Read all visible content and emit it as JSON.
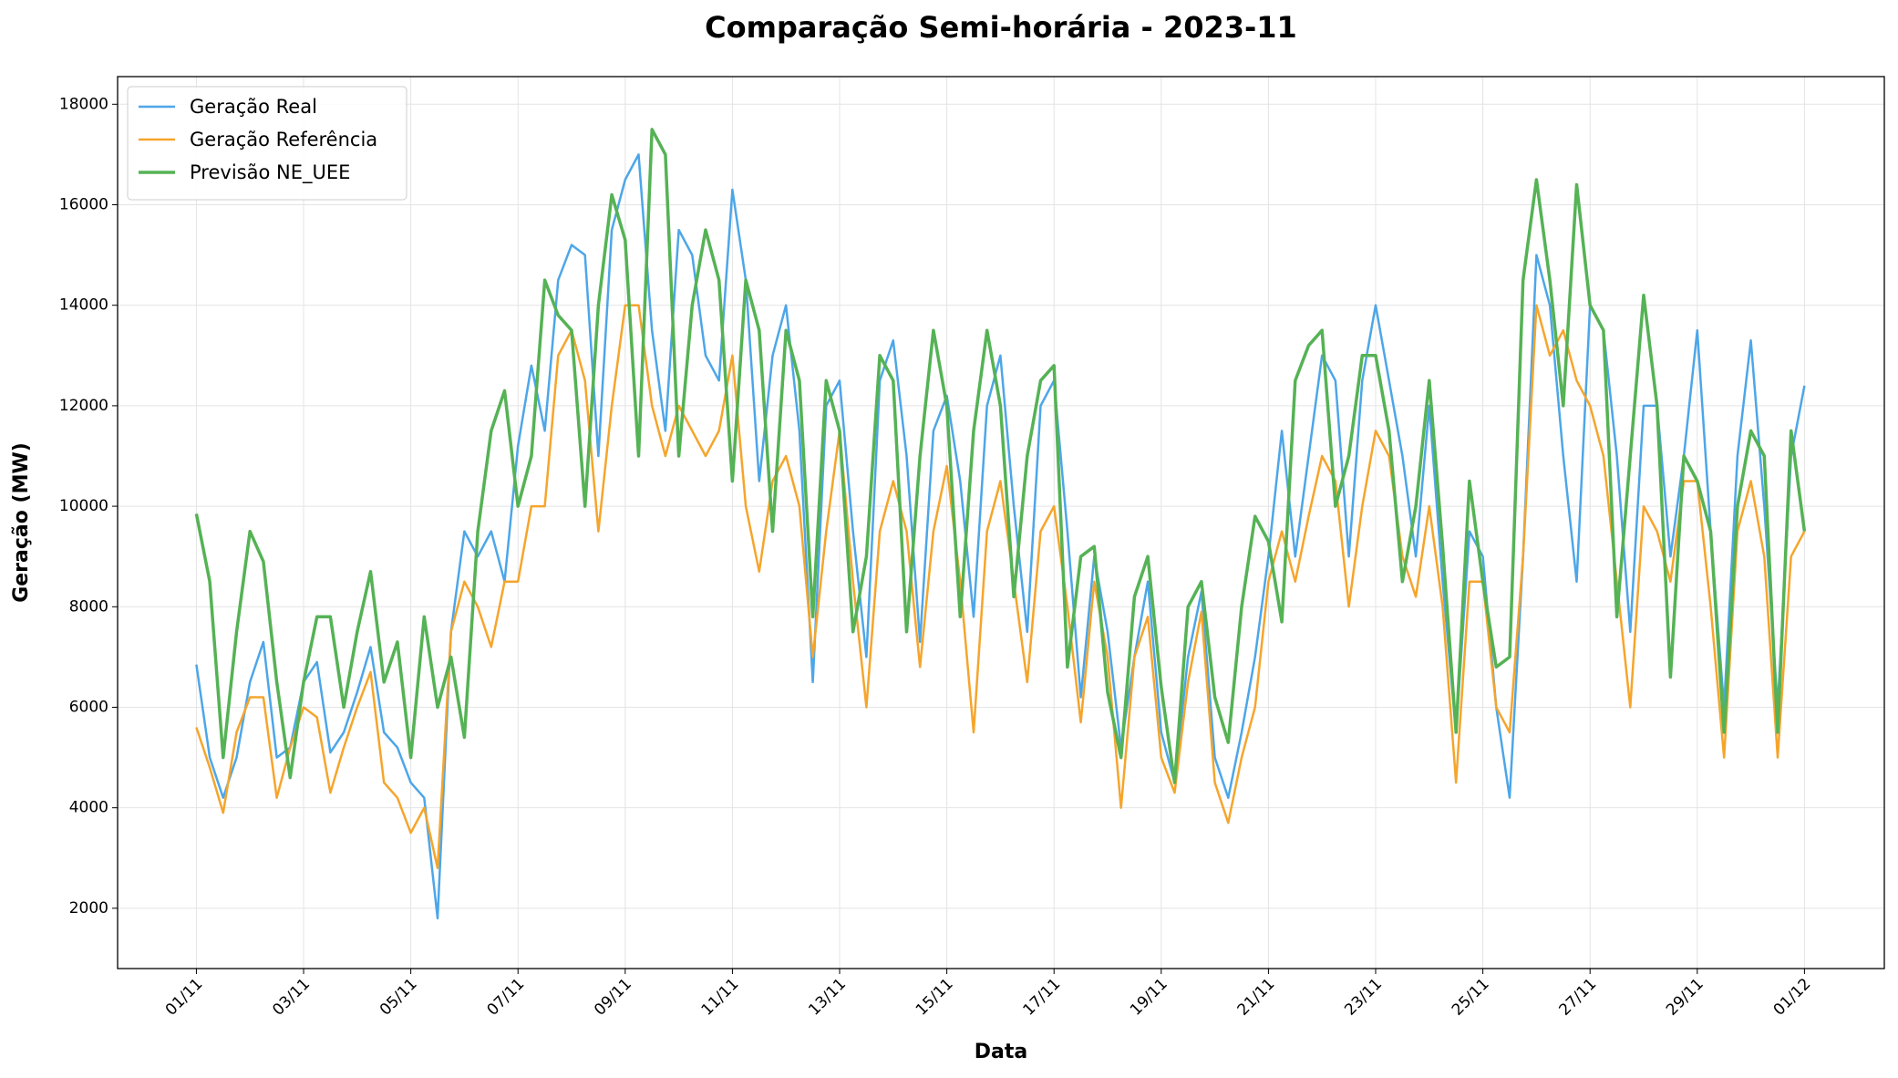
{
  "chart_data": {
    "type": "line",
    "title": "Comparação Semi-horária - 2023-11",
    "xlabel": "Data",
    "ylabel": "Geração (MW)",
    "x": [
      0,
      0.25,
      0.5,
      0.75,
      1,
      1.25,
      1.5,
      1.75,
      2,
      2.25,
      2.5,
      2.75,
      3,
      3.25,
      3.5,
      3.75,
      4,
      4.25,
      4.5,
      4.75,
      5,
      5.25,
      5.5,
      5.75,
      6,
      6.25,
      6.5,
      6.75,
      7,
      7.25,
      7.5,
      7.75,
      8,
      8.25,
      8.5,
      8.75,
      9,
      9.25,
      9.5,
      9.75,
      10,
      10.25,
      10.5,
      10.75,
      11,
      11.25,
      11.5,
      11.75,
      12,
      12.25,
      12.5,
      12.75,
      13,
      13.25,
      13.5,
      13.75,
      14,
      14.25,
      14.5,
      14.75,
      15,
      15.25,
      15.5,
      15.75,
      16,
      16.25,
      16.5,
      16.75,
      17,
      17.25,
      17.5,
      17.75,
      18,
      18.25,
      18.5,
      18.75,
      19,
      19.25,
      19.5,
      19.75,
      20,
      20.25,
      20.5,
      20.75,
      21,
      21.25,
      21.5,
      21.75,
      22,
      22.25,
      22.5,
      22.75,
      23,
      23.25,
      23.5,
      23.75,
      24,
      24.25,
      24.5,
      24.75,
      25,
      25.25,
      25.5,
      25.75,
      26,
      26.25,
      26.5,
      26.75,
      27,
      27.25,
      27.5,
      27.75,
      28,
      28.25,
      28.5,
      28.75,
      29,
      29.25,
      29.5,
      29.75,
      30
    ],
    "series": [
      {
        "name": "Geração Real",
        "color": "#4da6e8",
        "width": 2.5,
        "values": [
          6850,
          5000,
          4200,
          5000,
          6500,
          7300,
          5000,
          5200,
          6500,
          6900,
          5100,
          5500,
          6300,
          7200,
          5500,
          5200,
          4500,
          4200,
          1800,
          7500,
          9500,
          9000,
          9500,
          8500,
          11200,
          12800,
          11500,
          14500,
          15200,
          15000,
          11000,
          15500,
          16500,
          17000,
          13500,
          11500,
          15500,
          15000,
          13000,
          12500,
          16300,
          14500,
          10500,
          13000,
          14000,
          11500,
          6500,
          12000,
          12500,
          9500,
          7000,
          12500,
          13300,
          11000,
          7300,
          11500,
          12200,
          10500,
          7800,
          12000,
          13000,
          10000,
          7500,
          12000,
          12500,
          9500,
          6200,
          9000,
          7500,
          5200,
          7000,
          8500,
          5500,
          4500,
          7000,
          8300,
          5000,
          4200,
          5500,
          7000,
          9000,
          11500,
          9000,
          11000,
          13000,
          12500,
          9000,
          12500,
          14000,
          12500,
          11000,
          9000,
          12000,
          8500,
          5500,
          9500,
          9000,
          6000,
          4200,
          9000,
          15000,
          14000,
          11000,
          8500,
          14000,
          13500,
          11000,
          7500,
          12000,
          12000,
          9000,
          11000,
          13500,
          9500,
          6000,
          11000,
          13300,
          10000,
          6000,
          11000,
          12400
        ]
      },
      {
        "name": "Geração Referência",
        "color": "#f5a52c",
        "width": 2.5,
        "values": [
          5600,
          4800,
          3900,
          5500,
          6200,
          6200,
          4200,
          5200,
          6000,
          5800,
          4300,
          5200,
          6000,
          6700,
          4500,
          4200,
          3500,
          4000,
          2800,
          7500,
          8500,
          8000,
          7200,
          8500,
          8500,
          10000,
          10000,
          13000,
          13500,
          12500,
          9500,
          12000,
          14000,
          14000,
          12000,
          11000,
          12000,
          11500,
          11000,
          11500,
          13000,
          10000,
          8700,
          10500,
          11000,
          10000,
          7000,
          9500,
          11500,
          8500,
          6000,
          9500,
          10500,
          9500,
          6800,
          9500,
          10800,
          8500,
          5500,
          9500,
          10500,
          8500,
          6500,
          9500,
          10000,
          8000,
          5700,
          8500,
          7000,
          4000,
          7000,
          7800,
          5000,
          4300,
          6500,
          7900,
          4500,
          3700,
          5000,
          6000,
          8500,
          9500,
          8500,
          9800,
          11000,
          10500,
          8000,
          10000,
          11500,
          11000,
          9000,
          8200,
          10000,
          8000,
          4500,
          8500,
          8500,
          6000,
          5500,
          9000,
          14000,
          13000,
          13500,
          12500,
          12000,
          11000,
          8500,
          6000,
          10000,
          9500,
          8500,
          10500,
          10500,
          8000,
          5000,
          9500,
          10500,
          9000,
          5000,
          9000,
          9500
        ]
      },
      {
        "name": "Previsão NE_UEE",
        "color": "#55b255",
        "width": 3.5,
        "values": [
          9850,
          8500,
          5000,
          7500,
          9500,
          8900,
          6500,
          4600,
          6500,
          7800,
          7800,
          6000,
          7500,
          8700,
          6500,
          7300,
          5000,
          7800,
          6000,
          7000,
          5400,
          9500,
          11500,
          12300,
          10000,
          11000,
          14500,
          13800,
          13500,
          10000,
          14000,
          16200,
          15300,
          11000,
          17500,
          17000,
          11000,
          14000,
          15500,
          14500,
          10500,
          14500,
          13500,
          9500,
          13500,
          12500,
          7800,
          12500,
          11500,
          7500,
          9000,
          13000,
          12500,
          7500,
          11000,
          13500,
          12000,
          7800,
          11500,
          13500,
          12000,
          8200,
          11000,
          12500,
          12800,
          6800,
          9000,
          9200,
          6300,
          5000,
          8200,
          9000,
          6400,
          4500,
          8000,
          8500,
          6200,
          5300,
          8000,
          9800,
          9300,
          7700,
          12500,
          13200,
          13500,
          10000,
          11000,
          13000,
          13000,
          11500,
          8500,
          10000,
          12500,
          9200,
          5500,
          10500,
          8500,
          6800,
          7000,
          14500,
          16500,
          14500,
          12000,
          16400,
          14000,
          13500,
          7800,
          11000,
          14200,
          12000,
          6600,
          11000,
          10500,
          9500,
          5500,
          10000,
          11500,
          11000,
          5500,
          11500,
          9500
        ]
      }
    ],
    "xlim": [
      -1.47,
      31.49
    ],
    "ylim": [
      800,
      18550
    ],
    "xticks": [
      {
        "value": 0,
        "label": "01/11"
      },
      {
        "value": 2,
        "label": "03/11"
      },
      {
        "value": 4,
        "label": "05/11"
      },
      {
        "value": 6,
        "label": "07/11"
      },
      {
        "value": 8,
        "label": "09/11"
      },
      {
        "value": 10,
        "label": "11/11"
      },
      {
        "value": 12,
        "label": "13/11"
      },
      {
        "value": 14,
        "label": "15/11"
      },
      {
        "value": 16,
        "label": "17/11"
      },
      {
        "value": 18,
        "label": "19/11"
      },
      {
        "value": 20,
        "label": "21/11"
      },
      {
        "value": 22,
        "label": "23/11"
      },
      {
        "value": 24,
        "label": "25/11"
      },
      {
        "value": 26,
        "label": "27/11"
      },
      {
        "value": 28,
        "label": "29/11"
      },
      {
        "value": 30,
        "label": "01/12"
      }
    ],
    "yticks": [
      2000,
      4000,
      6000,
      8000,
      10000,
      12000,
      14000,
      16000,
      18000
    ],
    "grid": true,
    "legend": "upper-left"
  }
}
